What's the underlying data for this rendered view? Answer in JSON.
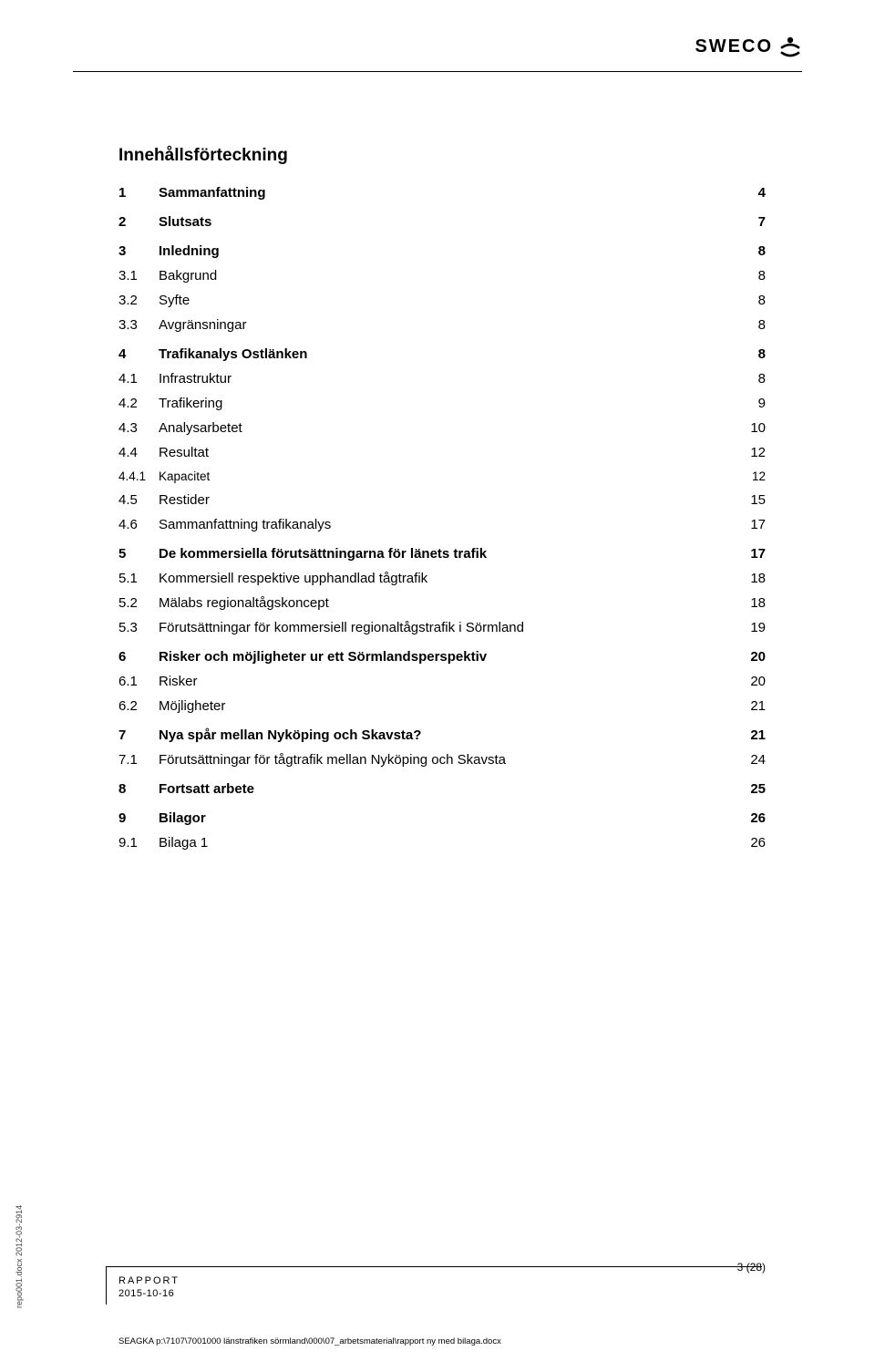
{
  "logo": {
    "text": "SWECO"
  },
  "toc": {
    "title": "Innehållsförteckning",
    "entries": [
      {
        "lvl": 1,
        "num": "1",
        "title": "Sammanfattning",
        "page": "4"
      },
      {
        "lvl": 1,
        "num": "2",
        "title": "Slutsats",
        "page": "7"
      },
      {
        "lvl": 1,
        "num": "3",
        "title": "Inledning",
        "page": "8"
      },
      {
        "lvl": 2,
        "num": "3.1",
        "title": "Bakgrund",
        "page": "8"
      },
      {
        "lvl": 2,
        "num": "3.2",
        "title": "Syfte",
        "page": "8"
      },
      {
        "lvl": 2,
        "num": "3.3",
        "title": "Avgränsningar",
        "page": "8"
      },
      {
        "lvl": 1,
        "num": "4",
        "title": "Trafikanalys Ostlänken",
        "page": "8"
      },
      {
        "lvl": 2,
        "num": "4.1",
        "title": "Infrastruktur",
        "page": "8"
      },
      {
        "lvl": 2,
        "num": "4.2",
        "title": "Trafikering",
        "page": "9"
      },
      {
        "lvl": 2,
        "num": "4.3",
        "title": "Analysarbetet",
        "page": "10"
      },
      {
        "lvl": 2,
        "num": "4.4",
        "title": "Resultat",
        "page": "12"
      },
      {
        "lvl": 3,
        "num": "4.4.1",
        "title": "Kapacitet",
        "page": "12"
      },
      {
        "lvl": 2,
        "num": "4.5",
        "title": "Restider",
        "page": "15"
      },
      {
        "lvl": 2,
        "num": "4.6",
        "title": "Sammanfattning trafikanalys",
        "page": "17"
      },
      {
        "lvl": 1,
        "num": "5",
        "title": "De kommersiella förutsättningarna för länets trafik",
        "page": "17"
      },
      {
        "lvl": 2,
        "num": "5.1",
        "title": "Kommersiell respektive upphandlad tågtrafik",
        "page": "18"
      },
      {
        "lvl": 2,
        "num": "5.2",
        "title": "Mälabs regionaltågskoncept",
        "page": "18"
      },
      {
        "lvl": 2,
        "num": "5.3",
        "title": "Förutsättningar för kommersiell regionaltågstrafik i Sörmland",
        "page": "19"
      },
      {
        "lvl": 1,
        "num": "6",
        "title": "Risker och möjligheter ur ett Sörmlandsperspektiv",
        "page": "20"
      },
      {
        "lvl": 2,
        "num": "6.1",
        "title": "Risker",
        "page": "20"
      },
      {
        "lvl": 2,
        "num": "6.2",
        "title": "Möjligheter",
        "page": "21"
      },
      {
        "lvl": 1,
        "num": "7",
        "title": "Nya spår mellan Nyköping och Skavsta?",
        "page": "21"
      },
      {
        "lvl": 2,
        "num": "7.1",
        "title": "Förutsättningar för tågtrafik mellan Nyköping och Skavsta",
        "page": "24"
      },
      {
        "lvl": 1,
        "num": "8",
        "title": "Fortsatt arbete",
        "page": "25"
      },
      {
        "lvl": 1,
        "num": "9",
        "title": "Bilagor",
        "page": "26"
      },
      {
        "lvl": 2,
        "num": "9.1",
        "title": "Bilaga 1",
        "page": "26"
      }
    ]
  },
  "footer": {
    "rapport": "RAPPORT",
    "date": "2015-10-16",
    "page_num": "3 (28)",
    "path": "SEAGKA p:\\7107\\7001000 länstrafiken sörmland\\000\\07_arbetsmaterial\\rapport ny med bilaga.docx",
    "side": "repo001.docx 2012-03-2914"
  },
  "colors": {
    "text": "#000000",
    "background": "#ffffff",
    "rule": "#000000"
  },
  "typography": {
    "body_font": "Arial",
    "toc_title_pt": 19,
    "lvl1_pt": 15,
    "lvl2_pt": 15,
    "lvl3_pt": 13.5,
    "footer_small_pt": 11,
    "path_pt": 9.5
  }
}
